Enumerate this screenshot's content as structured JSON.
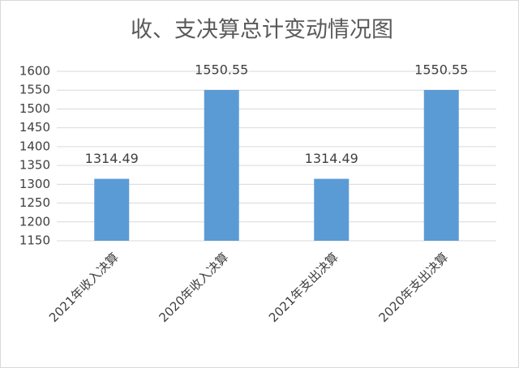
{
  "chart_data": {
    "type": "bar",
    "title": "收、支决算总计变动情况图",
    "categories": [
      "2021年收入决算",
      "2020年收入决算",
      "2021年支出决算",
      "2020年支出决算"
    ],
    "values": [
      1314.49,
      1550.55,
      1314.49,
      1550.55
    ],
    "color": "#5b9bd5",
    "ylim": [
      1150,
      1600
    ],
    "yticks": [
      1150,
      1200,
      1250,
      1300,
      1350,
      1400,
      1450,
      1500,
      1550,
      1600
    ],
    "grid": true
  }
}
